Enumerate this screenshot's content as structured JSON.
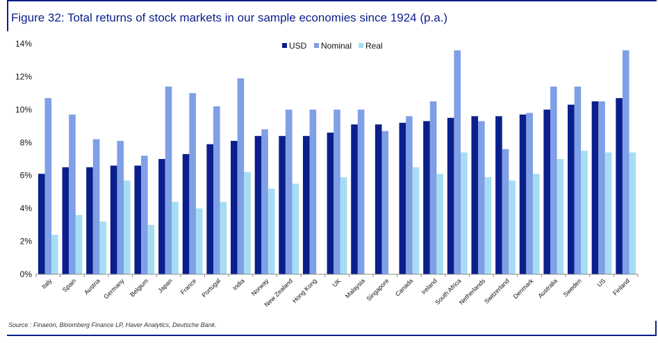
{
  "title": "Figure 32: Total returns of stock markets in our sample economies since 1924 (p.a.)",
  "source": "Source : Finaeon, Bloomberg Finance LP, Haver Analytics, Deutsche Bank.",
  "colors": {
    "USD": "#0a1e8c",
    "Nominal": "#7f9fe6",
    "Real": "#a6ddf5",
    "frame": "#0a1e8c"
  },
  "chart_data": {
    "type": "bar",
    "title": "Figure 32: Total returns of stock markets in our sample economies since 1924 (p.a.)",
    "xlabel": "",
    "ylabel": "",
    "ylim": [
      0,
      14
    ],
    "yticks": [
      "0%",
      "2%",
      "4%",
      "6%",
      "8%",
      "10%",
      "12%",
      "14%"
    ],
    "grid": false,
    "legend": "top",
    "categories": [
      "Italy",
      "Spain",
      "Austria",
      "Germany",
      "Belgium",
      "Japan",
      "France",
      "Portugal",
      "India",
      "Norway",
      "New Zealand",
      "Hong Kong",
      "UK",
      "Malaysia",
      "Singapore",
      "Canada",
      "Ireland",
      "South Africa",
      "Netherlands",
      "Switzerland",
      "Denmark",
      "Australia",
      "Sweden",
      "US",
      "Finland"
    ],
    "series": [
      {
        "name": "USD",
        "values": [
          6.1,
          6.5,
          6.5,
          6.6,
          6.6,
          7.0,
          7.3,
          7.9,
          8.1,
          8.4,
          8.4,
          8.4,
          8.6,
          9.1,
          9.1,
          9.2,
          9.3,
          9.5,
          9.6,
          9.6,
          9.7,
          10.0,
          10.3,
          10.5,
          10.7
        ]
      },
      {
        "name": "Nominal",
        "values": [
          10.7,
          9.7,
          8.2,
          8.1,
          7.2,
          11.4,
          11.0,
          10.2,
          11.9,
          8.8,
          10.0,
          10.0,
          10.0,
          10.0,
          8.7,
          9.6,
          10.5,
          13.6,
          9.3,
          7.6,
          9.8,
          11.4,
          11.4,
          10.5,
          13.6
        ]
      },
      {
        "name": "Real",
        "values": [
          2.4,
          3.6,
          3.2,
          5.7,
          3.0,
          4.4,
          4.0,
          4.4,
          6.2,
          5.2,
          5.5,
          null,
          5.9,
          null,
          null,
          6.5,
          6.1,
          7.4,
          5.9,
          5.7,
          6.1,
          7.0,
          7.5,
          7.4,
          7.4
        ]
      }
    ]
  }
}
